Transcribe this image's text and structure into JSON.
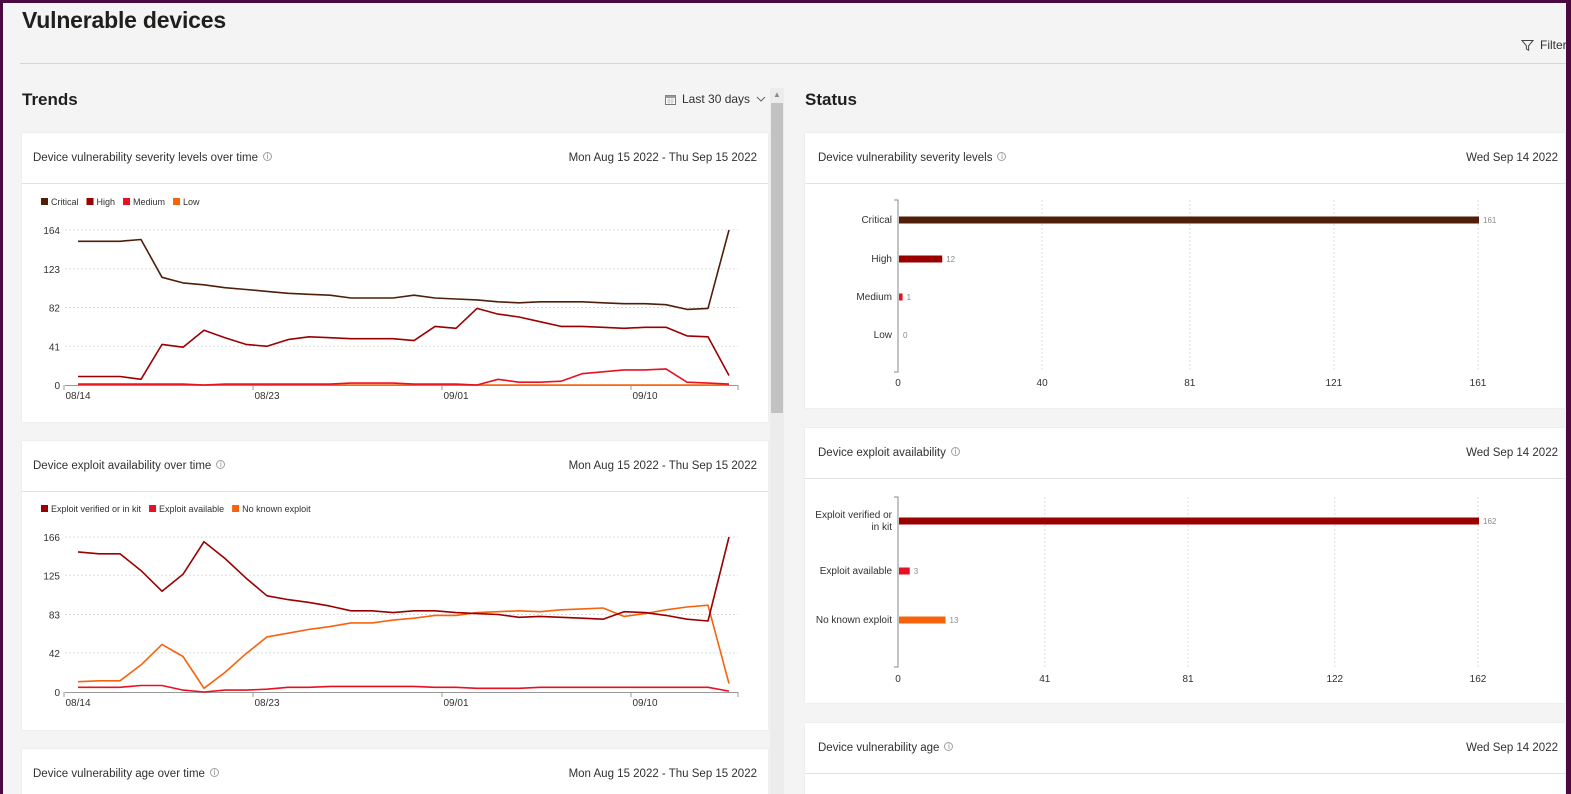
{
  "header": {
    "title": "Vulnerable devices",
    "filter_label": "Filters",
    "filter_icon": "funnel-icon"
  },
  "trends": {
    "title": "Trends",
    "range_label": "Last 30 days",
    "cards": [
      {
        "title": "Device vulnerability severity levels over time",
        "date": "Mon Aug 15 2022 - Thu Sep 15 2022"
      },
      {
        "title": "Device exploit availability over time",
        "date": "Mon Aug 15 2022 - Thu Sep 15 2022"
      },
      {
        "title": "Device vulnerability age over time",
        "date": "Mon Aug 15 2022 - Thu Sep 15 2022"
      }
    ]
  },
  "status": {
    "title": "Status",
    "cards": [
      {
        "title": "Device vulnerability severity levels",
        "date": "Wed Sep 14 2022"
      },
      {
        "title": "Device exploit availability",
        "date": "Wed Sep 14 2022"
      },
      {
        "title": "Device vulnerability age",
        "date": "Wed Sep 14 2022"
      }
    ]
  },
  "chart_data": [
    {
      "type": "line",
      "x_start": "2022-08-14",
      "x_ticks": [
        "08/14",
        "08/23",
        "09/01",
        "09/10"
      ],
      "y_ticks": [
        0,
        41,
        82,
        123,
        164
      ],
      "ylim": [
        0,
        164
      ],
      "grid": true,
      "legend": "top-left",
      "series": [
        {
          "name": "Critical",
          "color": "#4f1f0a",
          "values": [
            152,
            152,
            152,
            154,
            114,
            108,
            106,
            103,
            101,
            99,
            97,
            96,
            95,
            92,
            92,
            92,
            95,
            92,
            91,
            90,
            88,
            87,
            88,
            88,
            88,
            87,
            86,
            86,
            85,
            80,
            81,
            164
          ]
        },
        {
          "name": "High",
          "color": "#9b0000",
          "values": [
            9,
            9,
            9,
            6,
            43,
            40,
            58,
            50,
            43,
            41,
            48,
            51,
            50,
            49,
            49,
            49,
            47,
            62,
            60,
            81,
            75,
            72,
            67,
            62,
            62,
            61,
            60,
            61,
            61,
            52,
            51,
            10
          ]
        },
        {
          "name": "Medium",
          "color": "#e81123",
          "values": [
            1,
            1,
            1,
            1,
            1,
            1,
            0,
            1,
            1,
            1,
            1,
            1,
            1,
            2,
            2,
            2,
            1,
            1,
            1,
            0,
            6,
            3,
            3,
            4,
            12,
            14,
            16,
            16,
            17,
            3,
            2,
            1
          ]
        },
        {
          "name": "Low",
          "color": "#f7630c",
          "values": [
            0,
            0,
            0,
            0,
            0,
            0,
            0,
            0,
            0,
            0,
            0,
            0,
            0,
            0,
            0,
            0,
            0,
            0,
            0,
            0,
            0,
            0,
            0,
            0,
            0,
            0,
            0,
            0,
            0,
            0,
            0,
            0
          ]
        }
      ]
    },
    {
      "type": "line",
      "x_start": "2022-08-14",
      "x_ticks": [
        "08/14",
        "08/23",
        "09/01",
        "09/10"
      ],
      "y_ticks": [
        0,
        42,
        83,
        125,
        166
      ],
      "ylim": [
        0,
        166
      ],
      "grid": true,
      "legend": "top-left",
      "series": [
        {
          "name": "Exploit verified or in kit",
          "color": "#9b0000",
          "values": [
            150,
            148,
            148,
            130,
            108,
            126,
            161,
            143,
            122,
            103,
            99,
            96,
            92,
            87,
            87,
            85,
            87,
            87,
            85,
            84,
            83,
            80,
            81,
            80,
            79,
            78,
            86,
            85,
            82,
            78,
            76,
            166
          ]
        },
        {
          "name": "Exploit available",
          "color": "#e81123",
          "values": [
            5,
            5,
            5,
            7,
            7,
            2,
            0,
            2,
            2,
            3,
            5,
            5,
            6,
            6,
            6,
            6,
            6,
            5,
            5,
            4,
            4,
            4,
            5,
            5,
            5,
            5,
            5,
            5,
            5,
            5,
            5,
            1
          ]
        },
        {
          "name": "No known exploit",
          "color": "#f7630c",
          "values": [
            11,
            12,
            12,
            29,
            51,
            38,
            4,
            21,
            41,
            59,
            63,
            67,
            70,
            74,
            74,
            77,
            79,
            82,
            82,
            85,
            86,
            87,
            86,
            88,
            89,
            90,
            81,
            84,
            88,
            91,
            93,
            9
          ]
        }
      ]
    },
    {
      "type": "bar",
      "orientation": "horizontal",
      "categories": [
        "Critical",
        "High",
        "Medium",
        "Low"
      ],
      "values": [
        161,
        12,
        1,
        0
      ],
      "colors": [
        "#4f1f0a",
        "#9b0000",
        "#e81123",
        "#f7630c"
      ],
      "x_ticks": [
        0,
        40,
        81,
        121,
        161
      ],
      "xlim": [
        0,
        161
      ],
      "grid": true
    },
    {
      "type": "bar",
      "orientation": "horizontal",
      "categories": [
        [
          "Exploit verified or",
          "in kit"
        ],
        [
          "Exploit available"
        ],
        [
          "No known exploit"
        ]
      ],
      "values": [
        162,
        3,
        13
      ],
      "colors": [
        "#9b0000",
        "#e81123",
        "#f7630c"
      ],
      "x_ticks": [
        0,
        41,
        81,
        122,
        162
      ],
      "xlim": [
        0,
        162
      ],
      "grid": true
    }
  ]
}
